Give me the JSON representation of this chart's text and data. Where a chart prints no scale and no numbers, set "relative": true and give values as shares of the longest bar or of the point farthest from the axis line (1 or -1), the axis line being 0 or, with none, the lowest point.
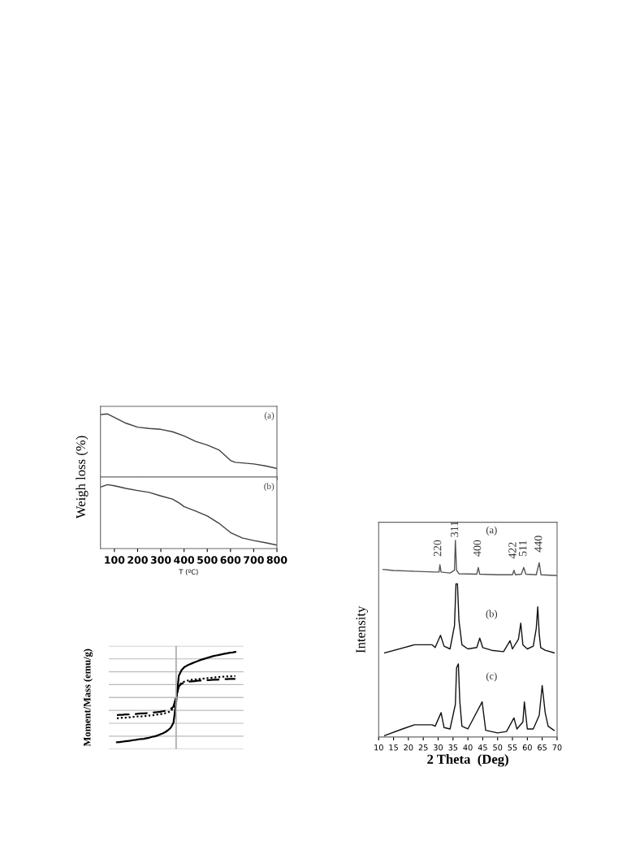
{
  "chart_data": [
    {
      "type": "line",
      "relative": true,
      "ylabel": "Weigh loss (%)",
      "xlim": [
        40,
        800
      ],
      "xticks": [
        100,
        200,
        300,
        400,
        500,
        600,
        700,
        800
      ],
      "tick_labels": false,
      "annotations": [
        "(a)"
      ],
      "series": [
        {
          "color": "#404040",
          "x": [
            40,
            70,
            100,
            150,
            200,
            250,
            300,
            350,
            400,
            450,
            500,
            550,
            575,
            600,
            620,
            700,
            750,
            800
          ],
          "values": [
            0.987,
            1,
            0.945,
            0.852,
            0.789,
            0.768,
            0.755,
            0.717,
            0.65,
            0.565,
            0.506,
            0.43,
            0.346,
            0.262,
            0.232,
            0.207,
            0.177,
            0.135
          ]
        }
      ]
    },
    {
      "type": "line",
      "relative": true,
      "xlabel": "T (ºC)",
      "xlim": [
        40,
        800
      ],
      "xticks": [
        100,
        200,
        300,
        400,
        500,
        600,
        700,
        800
      ],
      "tick_labels": "x",
      "annotations": [
        "(b)"
      ],
      "series": [
        {
          "color": "#404040",
          "x": [
            40,
            70,
            100,
            150,
            200,
            250,
            300,
            350,
            380,
            400,
            450,
            500,
            550,
            600,
            650,
            700,
            750,
            800
          ],
          "values": [
            0.962,
            1,
            0.983,
            0.941,
            0.908,
            0.879,
            0.824,
            0.774,
            0.711,
            0.657,
            0.586,
            0.51,
            0.397,
            0.251,
            0.167,
            0.126,
            0.092,
            0.054
          ]
        }
      ]
    },
    {
      "type": "line",
      "relative": true,
      "ylabel": "Moment/Mass (emu/g)",
      "grid": "y",
      "categories": [
        null,
        null,
        null,
        null,
        null,
        null,
        null,
        null,
        null,
        null,
        null,
        null,
        null,
        null,
        null,
        null,
        null,
        null,
        null,
        null,
        null,
        null,
        null,
        null,
        null,
        null,
        null,
        null,
        null,
        null,
        null,
        null,
        null,
        null,
        null,
        null,
        null,
        null,
        null,
        null,
        null,
        null,
        null,
        null,
        null
      ],
      "series": [
        {
          "color": "#000000",
          "line_style": "solid",
          "values": [
            -0.982,
            -0.976,
            -0.97,
            -0.959,
            -0.953,
            -0.947,
            -0.935,
            -0.929,
            -0.917,
            -0.911,
            -0.905,
            -0.893,
            -0.882,
            -0.864,
            -0.852,
            -0.834,
            -0.811,
            -0.787,
            -0.757,
            -0.716,
            -0.663,
            -0.556,
            -0.112,
            0.479,
            0.598,
            0.663,
            0.698,
            0.728,
            0.751,
            0.775,
            0.799,
            0.822,
            0.84,
            0.858,
            0.876,
            0.893,
            0.911,
            0.923,
            0.935,
            0.947,
            0.959,
            0.97,
            0.982,
            0.988,
            1.0
          ]
        },
        {
          "color": "#000000",
          "line_style": "dotted",
          "values": [
            -0.456,
            -0.45,
            -0.444,
            -0.444,
            -0.438,
            -0.432,
            -0.426,
            -0.42,
            -0.414,
            -0.414,
            -0.408,
            -0.402,
            -0.396,
            -0.391,
            -0.385,
            -0.373,
            -0.367,
            -0.355,
            -0.343,
            -0.325,
            -0.296,
            -0.231,
            0.006,
            0.26,
            0.32,
            0.349,
            0.367,
            0.379,
            0.391,
            0.396,
            0.402,
            0.408,
            0.414,
            0.42,
            0.426,
            0.432,
            0.438,
            0.444,
            0.45,
            0.456,
            0.456,
            0.462,
            0.467,
            0.467,
            0.473
          ]
        },
        {
          "color": "#000000",
          "line_style": "dashed",
          "values": [
            -0.385,
            -0.379,
            -0.379,
            -0.373,
            -0.373,
            -0.367,
            -0.361,
            -0.361,
            -0.355,
            -0.349,
            -0.349,
            -0.343,
            -0.337,
            -0.331,
            -0.325,
            -0.32,
            -0.314,
            -0.302,
            -0.29,
            -0.272,
            -0.249,
            -0.201,
            0.006,
            0.243,
            0.302,
            0.325,
            0.337,
            0.349,
            0.355,
            0.361,
            0.367,
            0.373,
            0.373,
            0.379,
            0.379,
            0.385,
            0.391,
            0.391,
            0.396,
            0.396,
            0.402,
            0.402,
            0.408,
            0.408,
            0.408
          ]
        }
      ]
    },
    {
      "type": "line",
      "relative": true,
      "xlabel": "2 Theta  (Deg)",
      "ylabel": "Intensity",
      "xlim": [
        10,
        70
      ],
      "xticks": [
        10,
        15,
        20,
        25,
        30,
        35,
        40,
        45,
        50,
        55,
        60,
        65,
        70
      ],
      "annotations": [
        "(a)",
        "(b)",
        "(c)",
        "220",
        "311",
        "400",
        "422",
        "511",
        "440"
      ],
      "series": [
        {
          "color": "#555555",
          "x": [
            11.5,
            15,
            20,
            25,
            29,
            30.3,
            30.6,
            31,
            34,
            35.5,
            35.8,
            36.2,
            37,
            43,
            43.5,
            44,
            50,
            55,
            55.5,
            56,
            58,
            58.8,
            59.5,
            63,
            64,
            64.6,
            70
          ],
          "values": [
            0.852,
            0.847,
            0.844,
            0.841,
            0.839,
            0.839,
            0.876,
            0.839,
            0.834,
            0.848,
            1.0,
            0.848,
            0.83,
            0.828,
            0.862,
            0.828,
            0.825,
            0.825,
            0.848,
            0.825,
            0.828,
            0.862,
            0.828,
            0.825,
            0.886,
            0.825,
            0.821
          ]
        },
        {
          "color": "#111111",
          "x": [
            12,
            22,
            28,
            29,
            30.8,
            32,
            34,
            35.5,
            36,
            36.5,
            37,
            38,
            40,
            43,
            44,
            45,
            48,
            52,
            54.2,
            55,
            57,
            57.8,
            58.5,
            60,
            62,
            63,
            63.5,
            64,
            64.5,
            66,
            69
          ],
          "values": [
            0.428,
            0.469,
            0.469,
            0.455,
            0.517,
            0.462,
            0.448,
            0.566,
            0.779,
            0.779,
            0.593,
            0.469,
            0.448,
            0.455,
            0.503,
            0.455,
            0.441,
            0.434,
            0.49,
            0.448,
            0.497,
            0.579,
            0.469,
            0.448,
            0.462,
            0.552,
            0.662,
            0.524,
            0.455,
            0.441,
            0.428
          ]
        },
        {
          "color": "#111111",
          "x": [
            12,
            18,
            22,
            28,
            29,
            31,
            32,
            34,
            35.8,
            36.2,
            36.8,
            37.3,
            38,
            40,
            44.8,
            46,
            50,
            53,
            55.5,
            56.5,
            58.5,
            59,
            60,
            62,
            64,
            65,
            66,
            67,
            69
          ],
          "values": [
            0.007,
            0.041,
            0.062,
            0.062,
            0.055,
            0.124,
            0.048,
            0.041,
            0.166,
            0.352,
            0.372,
            0.179,
            0.055,
            0.041,
            0.179,
            0.034,
            0.021,
            0.028,
            0.097,
            0.041,
            0.076,
            0.179,
            0.041,
            0.041,
            0.11,
            0.262,
            0.124,
            0.055,
            0.034
          ]
        }
      ]
    }
  ]
}
